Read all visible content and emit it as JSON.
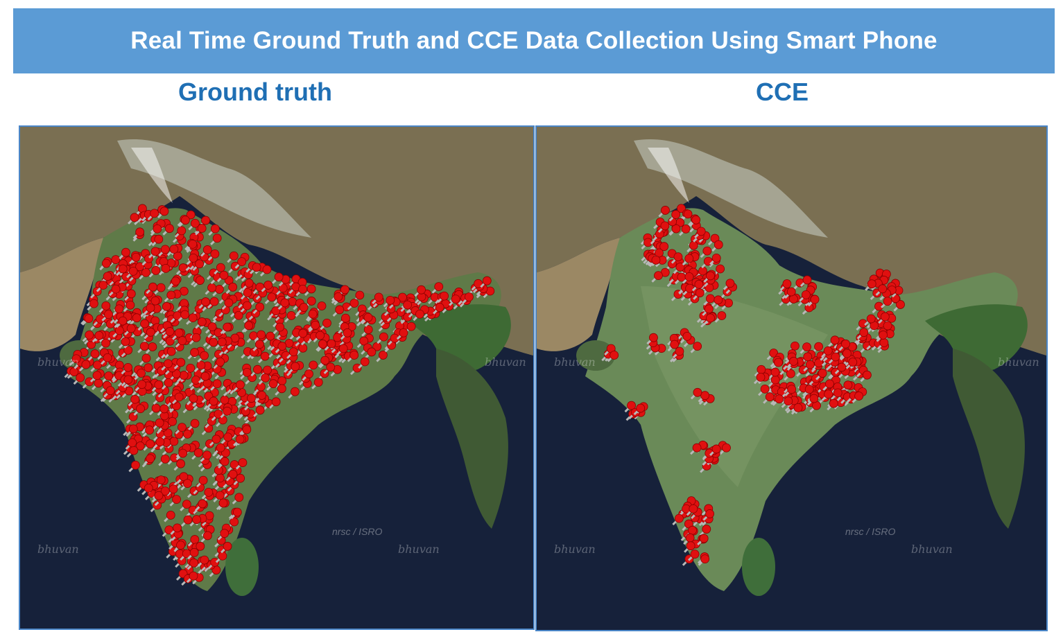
{
  "header": {
    "title": "Real Time Ground Truth and CCE Data Collection Using Smart Phone"
  },
  "panels": [
    {
      "title": "Ground truth",
      "marker_coverage": "dense, nationwide"
    },
    {
      "title": "CCE",
      "marker_coverage": "clustered"
    }
  ],
  "watermarks": {
    "brand": "bhuvan",
    "credit": "nrsc / ISRO"
  },
  "colors": {
    "banner": "#5b9bd5",
    "panel_title": "#1f6fb4",
    "border": "#4a86c8",
    "marker": "#e01010",
    "ocean": "#16213a",
    "land": "#6a7a4a"
  },
  "icons": {
    "marker": "pushpin-marker-icon"
  }
}
